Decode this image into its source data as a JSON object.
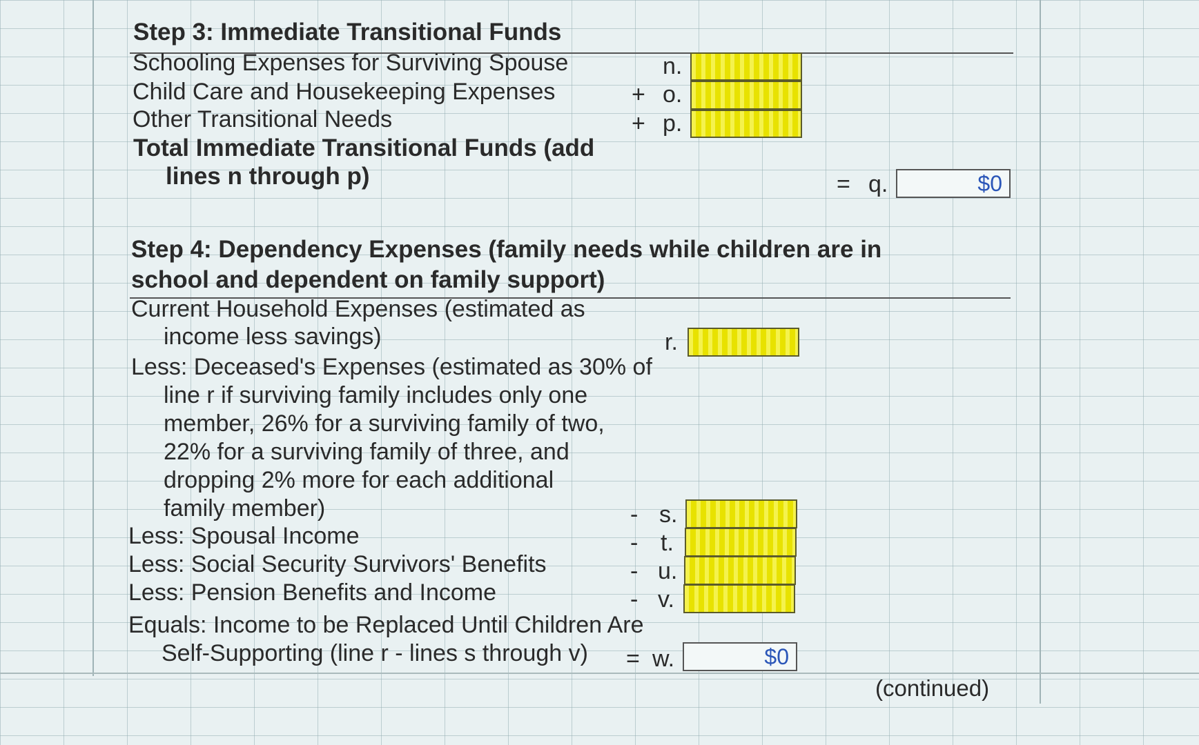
{
  "step3": {
    "heading": "Step 3: Immediate Transitional Funds",
    "rows": [
      {
        "label": "Schooling Expenses for Surviving Spouse",
        "op": "",
        "letter": "n."
      },
      {
        "label": "Child Care and Housekeeping Expenses",
        "op": "+",
        "letter": "o."
      },
      {
        "label": "Other Transitional Needs",
        "op": "+",
        "letter": "p."
      }
    ],
    "total_label_1": "Total Immediate Transitional Funds (add",
    "total_label_2": "lines n through p)",
    "total_op": "=",
    "total_letter": "q.",
    "total_value": "$0"
  },
  "step4": {
    "heading_1": "Step 4: Dependency Expenses (family needs while children are in",
    "heading_2": "school and dependent on family support)",
    "r_label_1": "Current Household Expenses (estimated as",
    "r_label_2": "income less savings)",
    "r_letter": "r.",
    "s_label_lines": [
      "Less: Deceased's Expenses (estimated as 30% of",
      "line r if surviving family includes only one",
      "member, 26% for a surviving family of two,",
      "22% for a surviving family of three, and",
      "dropping 2% more for each additional",
      "family member)"
    ],
    "s_op": "-",
    "s_letter": "s.",
    "rows": [
      {
        "label": "Less: Spousal Income",
        "op": "-",
        "letter": "t."
      },
      {
        "label": "Less: Social Security Survivors' Benefits",
        "op": "-",
        "letter": "u."
      },
      {
        "label": "Less: Pension Benefits and Income",
        "op": "-",
        "letter": "v."
      }
    ],
    "equals_label_1": "Equals: Income to be Replaced Until Children Are",
    "equals_label_2": "Self-Supporting (line r - lines s through v)",
    "equals_op": "=",
    "equals_letter": "w.",
    "equals_value": "$0"
  },
  "footer": {
    "continued": "(continued)"
  },
  "colors": {
    "input_cell": "#e8e200",
    "value_text": "#2b56b8"
  }
}
